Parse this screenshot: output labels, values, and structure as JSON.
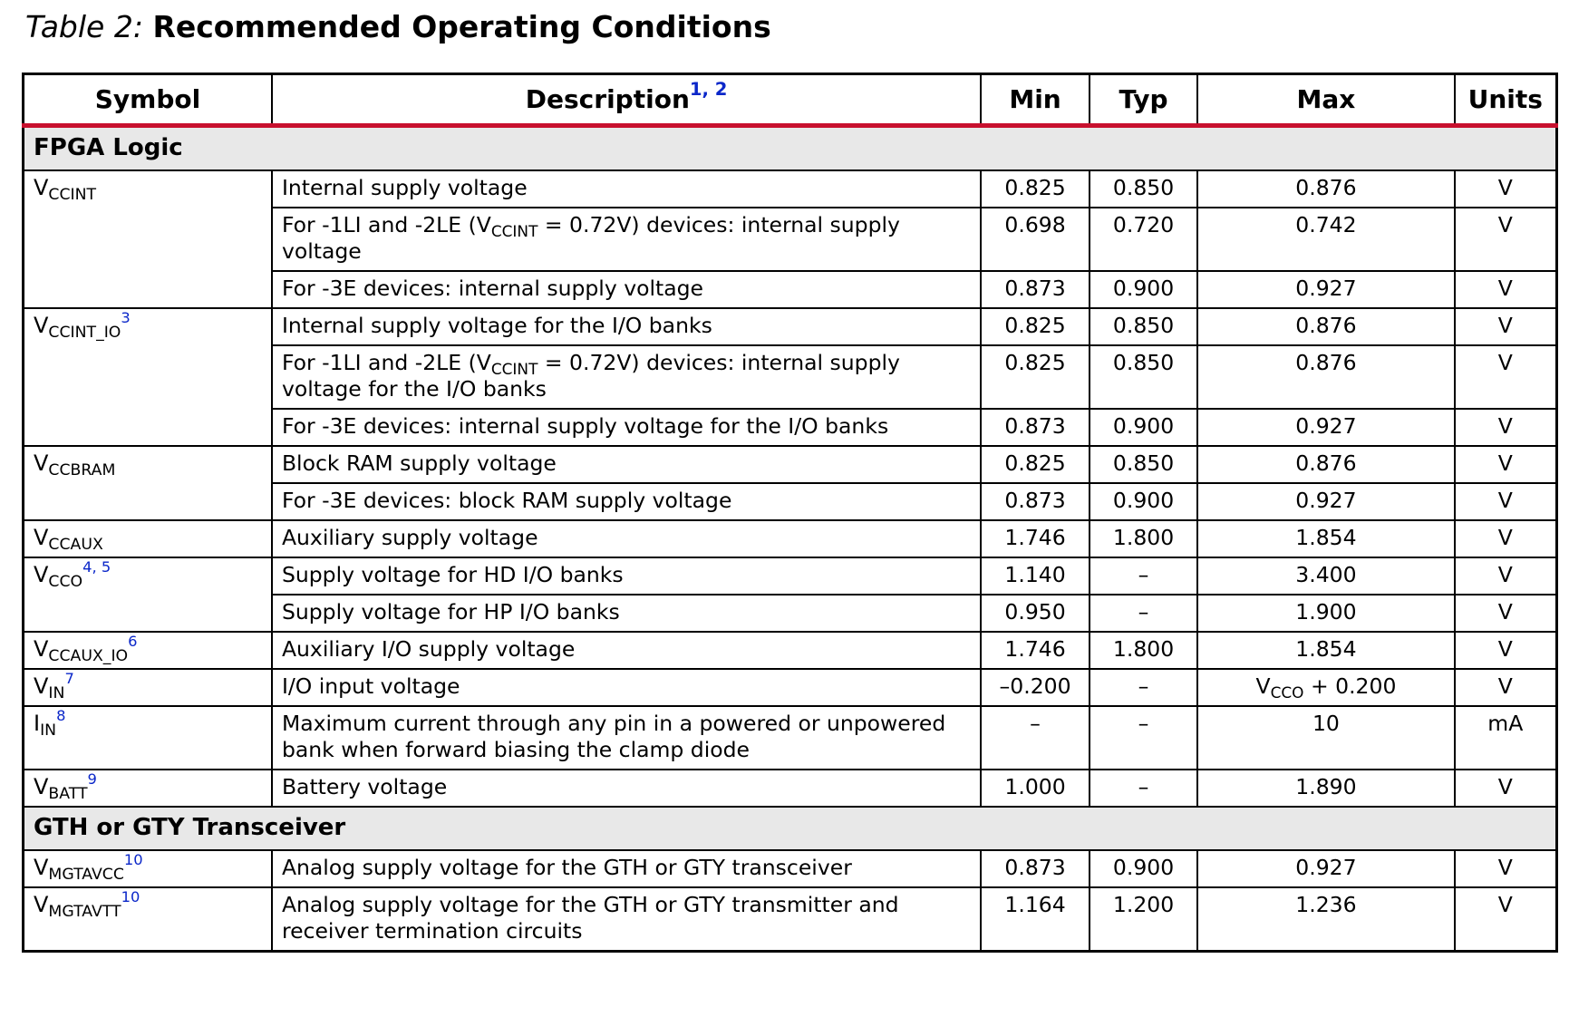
{
  "caption": {
    "label": "Table 2:",
    "title": "Recommended Operating Conditions"
  },
  "headers": {
    "symbol": "Symbol",
    "description": "Description",
    "description_notes": "1, 2",
    "min": "Min",
    "typ": "Typ",
    "max": "Max",
    "units": "Units"
  },
  "sections": {
    "fpga": "FPGA Logic",
    "gth": "GTH or GTY Transceiver"
  },
  "rows": [
    {
      "sym_base": "V",
      "sym_sub": "CCINT",
      "note": "",
      "desc": "Internal supply voltage",
      "min": "0.825",
      "typ": "0.850",
      "max": "0.876",
      "units": "V"
    },
    {
      "desc_a": "For -1LI and -2LE (V",
      "desc_sub": "CCINT",
      "desc_b": " = 0.72V) devices: internal supply voltage",
      "min": "0.698",
      "typ": "0.720",
      "max": "0.742",
      "units": "V"
    },
    {
      "desc": "For -3E devices: internal supply voltage",
      "min": "0.873",
      "typ": "0.900",
      "max": "0.927",
      "units": "V"
    },
    {
      "sym_base": "V",
      "sym_sub": "CCINT_IO",
      "note": "3",
      "desc": "Internal supply voltage for the I/O banks",
      "min": "0.825",
      "typ": "0.850",
      "max": "0.876",
      "units": "V"
    },
    {
      "desc_a": "For -1LI and -2LE (V",
      "desc_sub": "CCINT",
      "desc_b": " = 0.72V) devices: internal supply voltage for the I/O banks",
      "min": "0.825",
      "typ": "0.850",
      "max": "0.876",
      "units": "V"
    },
    {
      "desc": "For -3E devices: internal supply voltage for the I/O banks",
      "min": "0.873",
      "typ": "0.900",
      "max": "0.927",
      "units": "V"
    },
    {
      "sym_base": "V",
      "sym_sub": "CCBRAM",
      "note": "",
      "desc": "Block RAM supply voltage",
      "min": "0.825",
      "typ": "0.850",
      "max": "0.876",
      "units": "V"
    },
    {
      "desc": "For -3E devices: block RAM supply voltage",
      "min": "0.873",
      "typ": "0.900",
      "max": "0.927",
      "units": "V"
    },
    {
      "sym_base": "V",
      "sym_sub": "CCAUX",
      "note": "",
      "desc": "Auxiliary supply voltage",
      "min": "1.746",
      "typ": "1.800",
      "max": "1.854",
      "units": "V"
    },
    {
      "sym_base": "V",
      "sym_sub": "CCO",
      "note": "4, 5",
      "desc": "Supply voltage for HD I/O banks",
      "min": "1.140",
      "typ": "–",
      "max": "3.400",
      "units": "V"
    },
    {
      "desc": "Supply voltage for HP I/O banks",
      "min": "0.950",
      "typ": "–",
      "max": "1.900",
      "units": "V"
    },
    {
      "sym_base": "V",
      "sym_sub": "CCAUX_IO",
      "note": "6",
      "desc": "Auxiliary I/O supply voltage",
      "min": "1.746",
      "typ": "1.800",
      "max": "1.854",
      "units": "V"
    },
    {
      "sym_base": "V",
      "sym_sub": "IN",
      "note": "7",
      "desc": "I/O input voltage",
      "min": "–0.200",
      "typ": "–",
      "max_base": "V",
      "max_sub": "CCO",
      "max_tail": " + 0.200",
      "units": "V"
    },
    {
      "sym_base": "I",
      "sym_sub": "IN",
      "note": "8",
      "desc": "Maximum current through any pin in a powered or unpowered bank when forward biasing the clamp diode",
      "min": "–",
      "typ": "–",
      "max": "10",
      "units": "mA"
    },
    {
      "sym_base": "V",
      "sym_sub": "BATT",
      "note": "9",
      "desc": "Battery voltage",
      "min": "1.000",
      "typ": "–",
      "max": "1.890",
      "units": "V"
    },
    {
      "sym_base": "V",
      "sym_sub": "MGTAVCC",
      "note": "10",
      "desc": "Analog supply voltage for the GTH or GTY transceiver",
      "min": "0.873",
      "typ": "0.900",
      "max": "0.927",
      "units": "V"
    },
    {
      "sym_base": "V",
      "sym_sub": "MGTAVTT",
      "note": "10",
      "desc": "Analog supply voltage for the GTH or GTY transmitter and receiver termination circuits",
      "min": "1.164",
      "typ": "1.200",
      "max": "1.236",
      "units": "V"
    }
  ],
  "colors": {
    "header_rule": "#c8102e",
    "footnote_link": "#0b27c9",
    "section_bg": "#e8e8e8"
  }
}
